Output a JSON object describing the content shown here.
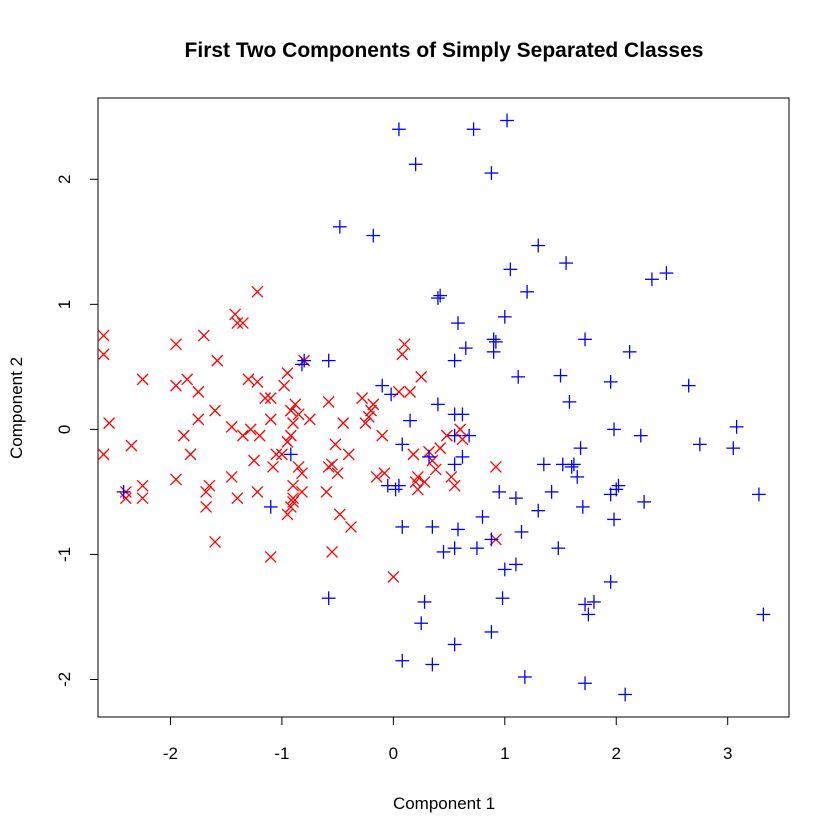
{
  "chart_data": {
    "type": "scatter",
    "title": "First Two Components of Simply Separated Classes",
    "xlabel": "Component 1",
    "ylabel": "Component 2",
    "xlim": [
      -2.65,
      3.55
    ],
    "ylim": [
      -2.3,
      2.65
    ],
    "xticks": [
      -2,
      -1,
      0,
      1,
      2,
      3
    ],
    "yticks": [
      -2,
      -1,
      0,
      1,
      2
    ],
    "grid": false,
    "series": [
      {
        "marker": "x",
        "color": "#ff0000",
        "points": [
          [
            -2.6,
            0.75
          ],
          [
            -2.6,
            0.6
          ],
          [
            -2.55,
            0.05
          ],
          [
            -2.6,
            -0.2
          ],
          [
            -2.25,
            0.4
          ],
          [
            -2.4,
            -0.5
          ],
          [
            -2.4,
            -0.55
          ],
          [
            -2.35,
            -0.13
          ],
          [
            -2.25,
            -0.45
          ],
          [
            -2.25,
            -0.55
          ],
          [
            -1.95,
            0.68
          ],
          [
            -1.95,
            0.35
          ],
          [
            -1.95,
            -0.4
          ],
          [
            -1.85,
            0.4
          ],
          [
            -1.88,
            -0.05
          ],
          [
            -1.82,
            -0.2
          ],
          [
            -1.75,
            0.08
          ],
          [
            -1.75,
            0.3
          ],
          [
            -1.7,
            0.75
          ],
          [
            -1.68,
            -0.5
          ],
          [
            -1.68,
            -0.62
          ],
          [
            -1.65,
            -0.45
          ],
          [
            -1.6,
            0.15
          ],
          [
            -1.6,
            -0.9
          ],
          [
            -1.58,
            0.55
          ],
          [
            -1.45,
            0.02
          ],
          [
            -1.45,
            -0.38
          ],
          [
            -1.42,
            0.92
          ],
          [
            -1.4,
            0.85
          ],
          [
            -1.4,
            -0.55
          ],
          [
            -1.35,
            0.85
          ],
          [
            -1.35,
            -0.05
          ],
          [
            -1.3,
            0.4
          ],
          [
            -1.28,
            0.0
          ],
          [
            -1.25,
            -0.25
          ],
          [
            -1.22,
            0.38
          ],
          [
            -1.22,
            -0.5
          ],
          [
            -1.22,
            1.1
          ],
          [
            -1.2,
            -0.05
          ],
          [
            -1.15,
            0.25
          ],
          [
            -1.1,
            0.25
          ],
          [
            -1.1,
            0.08
          ],
          [
            -1.08,
            -0.3
          ],
          [
            -1.05,
            -0.2
          ],
          [
            -1.1,
            -1.02
          ],
          [
            -1.0,
            -0.2
          ],
          [
            -0.98,
            0.35
          ],
          [
            -0.95,
            -0.1
          ],
          [
            -0.95,
            0.45
          ],
          [
            -0.92,
            -0.05
          ],
          [
            -0.92,
            0.15
          ],
          [
            -0.9,
            0.05
          ],
          [
            -0.9,
            -0.45
          ],
          [
            -0.9,
            -0.55
          ],
          [
            -0.88,
            0.2
          ],
          [
            -0.85,
            0.12
          ],
          [
            -0.85,
            -0.3
          ],
          [
            -0.82,
            -0.35
          ],
          [
            -0.82,
            -0.5
          ],
          [
            -0.8,
            0.55
          ],
          [
            -0.75,
            0.08
          ],
          [
            -0.92,
            -0.62
          ],
          [
            -0.95,
            -0.68
          ],
          [
            -0.9,
            -0.58
          ],
          [
            -0.58,
            0.22
          ],
          [
            -0.58,
            -0.3
          ],
          [
            -0.6,
            -0.5
          ],
          [
            -0.55,
            -0.28
          ],
          [
            -0.55,
            -0.98
          ],
          [
            -0.52,
            -0.12
          ],
          [
            -0.5,
            -0.35
          ],
          [
            -0.48,
            -0.68
          ],
          [
            -0.45,
            0.05
          ],
          [
            -0.4,
            -0.2
          ],
          [
            -0.38,
            -0.78
          ],
          [
            -0.28,
            0.25
          ],
          [
            -0.25,
            0.05
          ],
          [
            -0.22,
            0.1
          ],
          [
            -0.2,
            0.15
          ],
          [
            -0.18,
            0.2
          ],
          [
            -0.15,
            -0.38
          ],
          [
            -0.1,
            -0.05
          ],
          [
            -0.08,
            -0.35
          ],
          [
            0.0,
            -1.18
          ],
          [
            0.05,
            0.3
          ],
          [
            0.08,
            0.6
          ],
          [
            0.1,
            0.68
          ],
          [
            0.15,
            0.3
          ],
          [
            0.18,
            -0.2
          ],
          [
            0.2,
            -0.42
          ],
          [
            0.22,
            -0.48
          ],
          [
            0.22,
            -0.38
          ],
          [
            0.25,
            0.42
          ],
          [
            0.28,
            -0.42
          ],
          [
            0.32,
            -0.18
          ],
          [
            0.35,
            -0.25
          ],
          [
            0.38,
            -0.32
          ],
          [
            0.42,
            -0.15
          ],
          [
            0.48,
            -0.05
          ],
          [
            0.52,
            -0.38
          ],
          [
            0.55,
            -0.45
          ],
          [
            0.6,
            0.0
          ],
          [
            0.62,
            -0.08
          ],
          [
            0.92,
            -0.3
          ],
          [
            0.92,
            -0.88
          ]
        ]
      },
      {
        "marker": "+",
        "color": "#0000ff",
        "points": [
          [
            -2.42,
            -0.5
          ],
          [
            -1.1,
            -0.62
          ],
          [
            -0.92,
            -0.2
          ],
          [
            -0.8,
            0.55
          ],
          [
            -0.82,
            0.52
          ],
          [
            -0.58,
            0.55
          ],
          [
            -0.58,
            -1.35
          ],
          [
            -0.48,
            1.62
          ],
          [
            -0.18,
            1.55
          ],
          [
            -0.1,
            0.35
          ],
          [
            -0.05,
            -0.45
          ],
          [
            -0.02,
            0.28
          ],
          [
            0.02,
            -0.48
          ],
          [
            0.05,
            -0.45
          ],
          [
            0.05,
            2.4
          ],
          [
            0.08,
            -0.12
          ],
          [
            0.08,
            -0.78
          ],
          [
            0.08,
            -1.85
          ],
          [
            0.15,
            0.07
          ],
          [
            0.2,
            2.12
          ],
          [
            0.25,
            -1.55
          ],
          [
            0.28,
            -1.38
          ],
          [
            0.32,
            -0.22
          ],
          [
            0.35,
            -0.78
          ],
          [
            0.35,
            -1.88
          ],
          [
            0.4,
            1.05
          ],
          [
            0.42,
            1.07
          ],
          [
            0.4,
            0.2
          ],
          [
            0.45,
            -0.98
          ],
          [
            0.55,
            0.55
          ],
          [
            0.55,
            0.12
          ],
          [
            0.55,
            -0.05
          ],
          [
            0.55,
            -0.28
          ],
          [
            0.55,
            -0.95
          ],
          [
            0.55,
            -1.72
          ],
          [
            0.58,
            0.85
          ],
          [
            0.58,
            -0.8
          ],
          [
            0.62,
            -0.22
          ],
          [
            0.62,
            0.12
          ],
          [
            0.65,
            0.65
          ],
          [
            0.68,
            -0.05
          ],
          [
            0.72,
            2.4
          ],
          [
            0.75,
            -0.95
          ],
          [
            0.8,
            -0.7
          ],
          [
            0.88,
            -0.88
          ],
          [
            0.88,
            -1.62
          ],
          [
            0.88,
            2.05
          ],
          [
            0.9,
            0.72
          ],
          [
            0.9,
            0.62
          ],
          [
            0.92,
            0.7
          ],
          [
            0.95,
            -0.5
          ],
          [
            0.98,
            -1.35
          ],
          [
            1.0,
            -1.12
          ],
          [
            1.0,
            0.9
          ],
          [
            1.02,
            2.47
          ],
          [
            1.05,
            1.28
          ],
          [
            1.1,
            -0.55
          ],
          [
            1.1,
            -1.08
          ],
          [
            1.12,
            0.42
          ],
          [
            1.15,
            -0.82
          ],
          [
            1.18,
            -1.98
          ],
          [
            1.2,
            1.1
          ],
          [
            1.3,
            1.47
          ],
          [
            1.3,
            -0.65
          ],
          [
            1.35,
            -0.28
          ],
          [
            1.42,
            -0.5
          ],
          [
            1.48,
            -0.95
          ],
          [
            1.5,
            0.43
          ],
          [
            1.52,
            -0.28
          ],
          [
            1.55,
            1.33
          ],
          [
            1.58,
            0.22
          ],
          [
            1.6,
            -0.3
          ],
          [
            1.62,
            -0.28
          ],
          [
            1.65,
            -0.38
          ],
          [
            1.68,
            -0.15
          ],
          [
            1.7,
            -0.62
          ],
          [
            1.72,
            -1.4
          ],
          [
            1.72,
            0.72
          ],
          [
            1.72,
            -2.03
          ],
          [
            1.75,
            -1.48
          ],
          [
            1.8,
            -1.38
          ],
          [
            1.95,
            0.38
          ],
          [
            1.95,
            -0.52
          ],
          [
            1.95,
            -1.22
          ],
          [
            1.98,
            0.0
          ],
          [
            1.98,
            -0.72
          ],
          [
            2.02,
            -0.45
          ],
          [
            2.0,
            -0.48
          ],
          [
            2.08,
            -2.12
          ],
          [
            2.12,
            0.62
          ],
          [
            2.22,
            -0.05
          ],
          [
            2.25,
            -0.58
          ],
          [
            2.32,
            1.2
          ],
          [
            2.45,
            1.25
          ],
          [
            2.65,
            0.35
          ],
          [
            2.75,
            -0.12
          ],
          [
            3.05,
            -0.15
          ],
          [
            3.08,
            0.02
          ],
          [
            3.28,
            -0.52
          ],
          [
            3.32,
            -1.48
          ]
        ]
      }
    ]
  }
}
